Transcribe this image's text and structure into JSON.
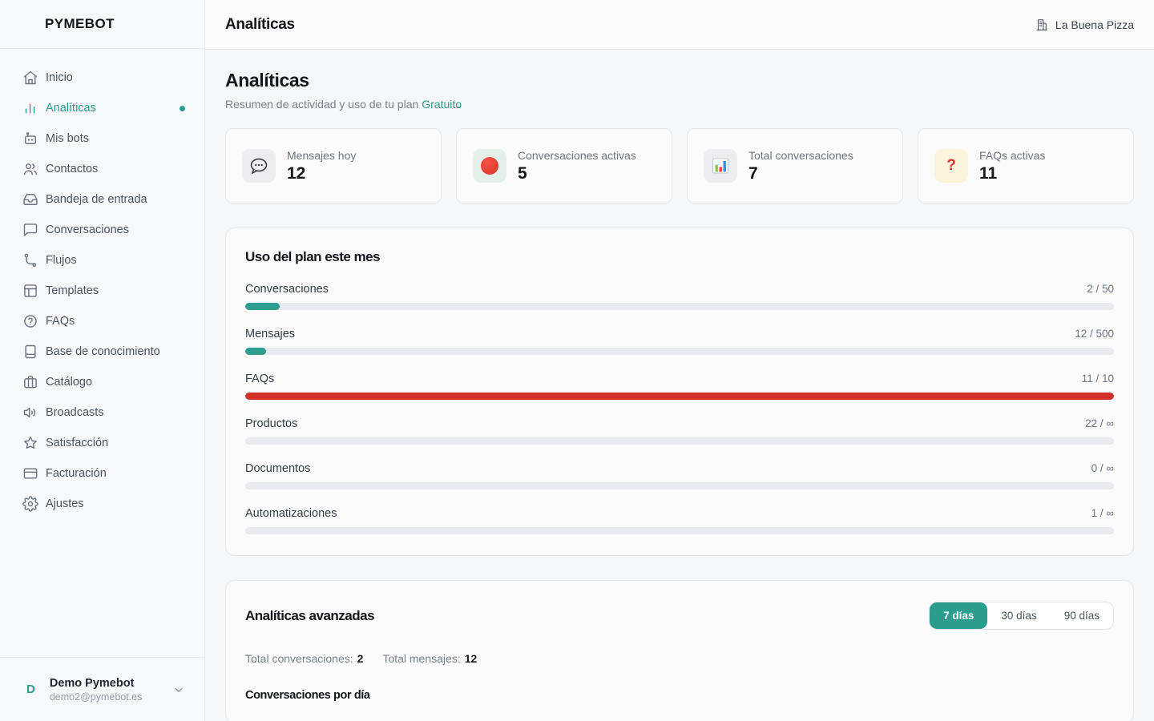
{
  "app": {
    "name": "PYMEBOT"
  },
  "topbar": {
    "title": "Analíticas",
    "tenant": "La Buena Pizza"
  },
  "sidebar": {
    "items": [
      {
        "label": "Inicio",
        "icon": "home-icon",
        "active": false
      },
      {
        "label": "Analíticas",
        "icon": "analytics-icon",
        "active": true
      },
      {
        "label": "Mis bots",
        "icon": "robot-icon",
        "active": false
      },
      {
        "label": "Contactos",
        "icon": "users-icon",
        "active": false
      },
      {
        "label": "Bandeja de entrada",
        "icon": "inbox-icon",
        "active": false
      },
      {
        "label": "Conversaciones",
        "icon": "chat-icon",
        "active": false
      },
      {
        "label": "Flujos",
        "icon": "flow-icon",
        "active": false
      },
      {
        "label": "Templates",
        "icon": "layout-icon",
        "active": false
      },
      {
        "label": "FAQs",
        "icon": "help-circle-icon",
        "active": false
      },
      {
        "label": "Base de conocimiento",
        "icon": "book-icon",
        "active": false
      },
      {
        "label": "Catálogo",
        "icon": "briefcase-icon",
        "active": false
      },
      {
        "label": "Broadcasts",
        "icon": "speaker-icon",
        "active": false
      },
      {
        "label": "Satisfacción",
        "icon": "star-icon",
        "active": false
      },
      {
        "label": "Facturación",
        "icon": "credit-card-icon",
        "active": false
      },
      {
        "label": "Ajustes",
        "icon": "gear-icon",
        "active": false
      }
    ]
  },
  "user": {
    "initial": "D",
    "name": "Demo Pymebot",
    "email": "demo2@pymebot.es"
  },
  "page": {
    "title": "Analíticas",
    "subtitle_prefix": "Resumen de actividad y uso de tu plan",
    "plan": "Gratuito"
  },
  "stats": [
    {
      "label": "Mensajes hoy",
      "value": "12",
      "icon": "chat-bubble-icon"
    },
    {
      "label": "Conversaciones activas",
      "value": "5",
      "icon": "red-circle-icon"
    },
    {
      "label": "Total conversaciones",
      "value": "7",
      "icon": "bar-chart-icon"
    },
    {
      "label": "FAQs activas",
      "value": "11",
      "icon": "question-mark-icon"
    }
  ],
  "plan_usage": {
    "title": "Uso del plan este mes",
    "rows": [
      {
        "label": "Conversaciones",
        "value_text": "2 / 50",
        "percent": 4,
        "color": "teal"
      },
      {
        "label": "Mensajes",
        "value_text": "12 / 500",
        "percent": 2.4,
        "color": "teal"
      },
      {
        "label": "FAQs",
        "value_text": "11 / 10",
        "percent": 100,
        "color": "red"
      },
      {
        "label": "Productos",
        "value_text": "22 / ∞",
        "percent": 0,
        "color": "teal"
      },
      {
        "label": "Documentos",
        "value_text": "0 / ∞",
        "percent": 0,
        "color": "teal"
      },
      {
        "label": "Automatizaciones",
        "value_text": "1 / ∞",
        "percent": 0,
        "color": "teal"
      }
    ]
  },
  "advanced": {
    "title": "Analíticas avanzadas",
    "range_options": [
      {
        "label": "7 días",
        "active": true
      },
      {
        "label": "30 días",
        "active": false
      },
      {
        "label": "90 días",
        "active": false
      }
    ],
    "totals": [
      {
        "label": "Total conversaciones:",
        "value": "2"
      },
      {
        "label": "Total mensajes:",
        "value": "12"
      }
    ],
    "chart_title": "Conversaciones por día"
  },
  "colors": {
    "accent": "#2a9d8f",
    "danger": "#d3302a"
  }
}
